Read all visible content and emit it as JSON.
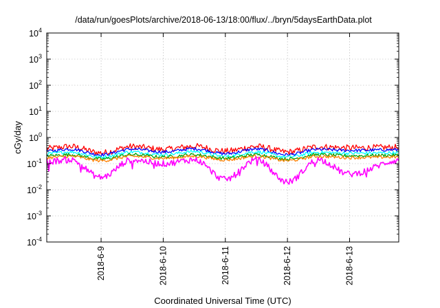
{
  "chart_data": {
    "type": "line",
    "title": "/data/run/goesPlots/archive/2018-06-13/18:00/flux/../bryn/5daysEarthData.plot",
    "xlabel": "Coordinated Universal Time (UTC)",
    "ylabel": "cGy/day",
    "y_scale": "log",
    "ylim": [
      0.0001,
      10000
    ],
    "y_ticks": [
      {
        "base": "10",
        "exp": "4",
        "value": 10000
      },
      {
        "base": "10",
        "exp": "3",
        "value": 1000
      },
      {
        "base": "10",
        "exp": "2",
        "value": 100
      },
      {
        "base": "10",
        "exp": "1",
        "value": 10
      },
      {
        "base": "10",
        "exp": "0",
        "value": 1
      },
      {
        "base": "10",
        "exp": "-1",
        "value": 0.1
      },
      {
        "base": "10",
        "exp": "-2",
        "value": 0.01
      },
      {
        "base": "10",
        "exp": "-3",
        "value": 0.001
      },
      {
        "base": "10",
        "exp": "-4",
        "value": 0.0001
      }
    ],
    "xlim": [
      "2018-06-08 03:00",
      "2018-06-13 19:00"
    ],
    "x_ticks": [
      {
        "label": "2018-6-9",
        "date": "2018-06-09 00:00"
      },
      {
        "label": "2018-6-10",
        "date": "2018-06-10 00:00"
      },
      {
        "label": "2018-6-11",
        "date": "2018-06-11 00:00"
      },
      {
        "label": "2018-6-12",
        "date": "2018-06-12 00:00"
      },
      {
        "label": "2018-6-13",
        "date": "2018-06-13 00:00"
      }
    ],
    "grid": true,
    "series": [
      {
        "color": "#ff0000",
        "x": [
          "2018-06-08 03:00",
          "2018-06-08 12:00",
          "2018-06-09 00:00",
          "2018-06-09 12:00",
          "2018-06-10 00:00",
          "2018-06-10 12:00",
          "2018-06-11 00:00",
          "2018-06-11 12:00",
          "2018-06-12 00:00",
          "2018-06-12 12:00",
          "2018-06-13 00:00",
          "2018-06-13 19:00"
        ],
        "y": [
          0.38,
          0.45,
          0.26,
          0.45,
          0.35,
          0.46,
          0.3,
          0.45,
          0.28,
          0.44,
          0.4,
          0.42
        ]
      },
      {
        "color": "#0000ff",
        "x": [
          "2018-06-08 03:00",
          "2018-06-08 12:00",
          "2018-06-09 00:00",
          "2018-06-09 12:00",
          "2018-06-10 00:00",
          "2018-06-10 12:00",
          "2018-06-11 00:00",
          "2018-06-11 12:00",
          "2018-06-12 00:00",
          "2018-06-12 12:00",
          "2018-06-13 00:00",
          "2018-06-13 19:00"
        ],
        "y": [
          0.3,
          0.36,
          0.22,
          0.36,
          0.28,
          0.37,
          0.24,
          0.36,
          0.22,
          0.35,
          0.32,
          0.34
        ]
      },
      {
        "color": "#00ffff",
        "x": [
          "2018-06-08 03:00",
          "2018-06-08 12:00",
          "2018-06-09 00:00",
          "2018-06-09 12:00",
          "2018-06-10 00:00",
          "2018-06-10 12:00",
          "2018-06-11 00:00",
          "2018-06-11 12:00",
          "2018-06-12 00:00",
          "2018-06-12 12:00",
          "2018-06-13 00:00",
          "2018-06-13 19:00"
        ],
        "y": [
          0.24,
          0.28,
          0.18,
          0.28,
          0.22,
          0.29,
          0.19,
          0.28,
          0.18,
          0.27,
          0.25,
          0.26
        ]
      },
      {
        "color": "#00a000",
        "x": [
          "2018-06-08 03:00",
          "2018-06-08 12:00",
          "2018-06-09 00:00",
          "2018-06-09 12:00",
          "2018-06-10 00:00",
          "2018-06-10 12:00",
          "2018-06-11 00:00",
          "2018-06-11 12:00",
          "2018-06-12 00:00",
          "2018-06-12 12:00",
          "2018-06-13 00:00",
          "2018-06-13 19:00"
        ],
        "y": [
          0.2,
          0.22,
          0.15,
          0.22,
          0.18,
          0.22,
          0.16,
          0.22,
          0.15,
          0.22,
          0.2,
          0.21
        ]
      },
      {
        "color": "#ff8000",
        "x": [
          "2018-06-08 03:00",
          "2018-06-08 12:00",
          "2018-06-09 00:00",
          "2018-06-09 12:00",
          "2018-06-10 00:00",
          "2018-06-10 12:00",
          "2018-06-11 00:00",
          "2018-06-11 12:00",
          "2018-06-12 00:00",
          "2018-06-12 12:00",
          "2018-06-13 00:00",
          "2018-06-13 19:00"
        ],
        "y": [
          0.17,
          0.19,
          0.13,
          0.19,
          0.16,
          0.19,
          0.14,
          0.19,
          0.13,
          0.19,
          0.17,
          0.18
        ]
      },
      {
        "color": "#ff00ff",
        "x": [
          "2018-06-08 03:00",
          "2018-06-08 12:00",
          "2018-06-09 00:00",
          "2018-06-09 12:00",
          "2018-06-10 00:00",
          "2018-06-10 12:00",
          "2018-06-11 00:00",
          "2018-06-11 12:00",
          "2018-06-12 00:00",
          "2018-06-12 12:00",
          "2018-06-13 00:00",
          "2018-06-13 19:00"
        ],
        "y": [
          0.12,
          0.14,
          0.03,
          0.14,
          0.1,
          0.14,
          0.025,
          0.14,
          0.02,
          0.14,
          0.04,
          0.13
        ]
      }
    ]
  }
}
